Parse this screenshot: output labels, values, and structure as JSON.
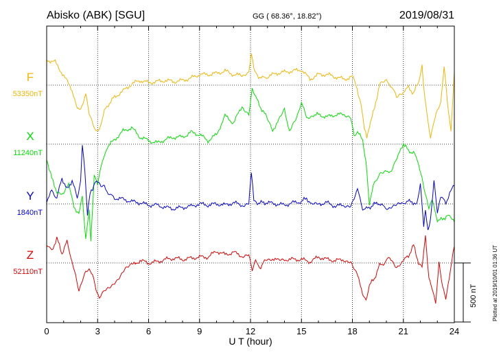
{
  "chart_data": {
    "type": "line",
    "title": "Abisko (ABK)  [SGU]",
    "coords": "GG ( 68.36°,  18.82°)",
    "date": "2019/08/31",
    "xlabel": "U T (hour)",
    "xlim": [
      0,
      24
    ],
    "xticks": [
      "0",
      "3",
      "6",
      "9",
      "12",
      "15",
      "18",
      "21",
      "24"
    ],
    "scale_bar": "500 nT",
    "plotted_note": "Plotted at 2019/10/01 01:36 UT",
    "grid": true,
    "series": [
      {
        "name": "F",
        "baseline_label": "53350nT",
        "baseline_nT": 53350,
        "color": "#f4b400",
        "x": [
          0,
          0.5,
          1,
          1.5,
          1.8,
          2,
          2.3,
          2.5,
          2.7,
          2.9,
          3.1,
          3.4,
          3.7,
          4,
          4.5,
          5,
          5.5,
          6,
          6.5,
          7,
          7.5,
          8,
          8.5,
          9,
          9.5,
          10,
          10.5,
          11,
          11.5,
          11.9,
          12.05,
          12.2,
          12.4,
          12.7,
          13,
          13.5,
          14,
          14.5,
          15,
          15.5,
          16,
          16.5,
          17,
          17.5,
          18,
          18.2,
          18.5,
          18.7,
          18.85,
          19,
          19.3,
          19.6,
          20,
          20.3,
          20.6,
          21,
          21.3,
          21.6,
          21.9,
          22.1,
          22.2,
          22.4,
          22.6,
          22.8,
          23,
          23.2,
          23.4,
          23.6,
          23.8,
          24
        ],
        "y": [
          53565,
          53545,
          53430,
          53310,
          53140,
          53150,
          53270,
          53100,
          53020,
          52950,
          52980,
          53130,
          53200,
          53250,
          53300,
          53360,
          53390,
          53370,
          53380,
          53390,
          53380,
          53390,
          53410,
          53440,
          53440,
          53450,
          53470,
          53440,
          53430,
          53470,
          53610,
          53490,
          53430,
          53410,
          53420,
          53450,
          53460,
          53470,
          53480,
          53400,
          53440,
          53440,
          53420,
          53400,
          53420,
          53350,
          53200,
          52980,
          52900,
          53010,
          53150,
          53360,
          53380,
          53340,
          53250,
          53300,
          53330,
          53280,
          53380,
          53530,
          53320,
          53080,
          52900,
          53050,
          53150,
          53210,
          53520,
          53200,
          52950,
          53460
        ]
      },
      {
        "name": "X",
        "baseline_label": "11240nT",
        "baseline_nT": 11240,
        "color": "#00e000",
        "x": [
          0,
          0.3,
          0.6,
          1,
          1.3,
          1.6,
          1.9,
          2.1,
          2.3,
          2.5,
          2.6,
          2.8,
          3,
          3.2,
          3.5,
          4,
          4.5,
          5,
          5.5,
          6,
          6.5,
          7,
          7.5,
          8,
          8.5,
          9,
          9.5,
          10,
          10.5,
          11,
          11.5,
          11.9,
          12.1,
          12.3,
          12.6,
          12.9,
          13.3,
          13.6,
          14,
          14.3,
          14.7,
          15,
          15.3,
          15.7,
          16,
          16.5,
          17,
          17.5,
          17.9,
          18.1,
          18.3,
          18.6,
          18.8,
          19,
          19.3,
          19.6,
          20,
          20.3,
          20.7,
          21,
          21.3,
          21.6,
          21.9,
          22.1,
          22.3,
          22.5,
          22.7,
          23,
          23.3,
          23.6,
          24
        ],
        "y": [
          11120,
          10950,
          10840,
          10810,
          10920,
          10700,
          10660,
          10790,
          10420,
          10680,
          10420,
          10980,
          10900,
          11040,
          11200,
          11280,
          11350,
          11380,
          11300,
          11270,
          11250,
          11280,
          11300,
          11300,
          11340,
          11320,
          11270,
          11320,
          11480,
          11420,
          11560,
          11500,
          11710,
          11640,
          11550,
          11480,
          11360,
          11420,
          11530,
          11350,
          11450,
          11600,
          11460,
          11490,
          11490,
          11470,
          11490,
          11490,
          11480,
          11320,
          11340,
          11280,
          11100,
          10740,
          10920,
          10980,
          11000,
          11020,
          11140,
          11250,
          11180,
          11170,
          11080,
          10960,
          10820,
          10700,
          10760,
          10600,
          10600,
          10640,
          10580
        ]
      },
      {
        "name": "Y",
        "baseline_label": "1840nT",
        "baseline_nT": 1840,
        "color": "#0000e0",
        "x": [
          0,
          0.3,
          0.6,
          0.9,
          1.2,
          1.5,
          1.8,
          2,
          2.1,
          2.25,
          2.4,
          2.55,
          2.7,
          2.85,
          3,
          3.2,
          3.4,
          3.7,
          4,
          4.5,
          5,
          5.5,
          6,
          6.5,
          7,
          7.5,
          8,
          8.5,
          9,
          9.5,
          10,
          10.5,
          11,
          11.5,
          11.9,
          12.05,
          12.2,
          12.4,
          12.7,
          13,
          13.5,
          14,
          14.5,
          15,
          15.3,
          15.6,
          16,
          16.5,
          17,
          17.5,
          17.9,
          18.1,
          18.3,
          18.6,
          18.9,
          19.2,
          19.5,
          19.8,
          20.1,
          20.5,
          20.9,
          21.2,
          21.5,
          21.8,
          22,
          22.2,
          22.3,
          22.45,
          22.6,
          22.8,
          23,
          23.2,
          23.5,
          23.8,
          24
        ],
        "y": [
          1870,
          1950,
          1890,
          2060,
          1960,
          2040,
          1890,
          2040,
          2330,
          2120,
          1760,
          1920,
          1960,
          2040,
          2020,
          1980,
          1980,
          1920,
          1890,
          1880,
          1860,
          1850,
          1830,
          1830,
          1810,
          1800,
          1810,
          1820,
          1840,
          1830,
          1840,
          1830,
          1850,
          1830,
          1850,
          2100,
          1880,
          1850,
          1850,
          1850,
          1840,
          1830,
          1850,
          1860,
          1890,
          1830,
          1840,
          1850,
          1820,
          1830,
          1830,
          1890,
          1960,
          1800,
          1800,
          1830,
          1850,
          1820,
          1800,
          1820,
          1840,
          1860,
          1860,
          1830,
          2000,
          1650,
          1780,
          1600,
          1720,
          2050,
          1780,
          1900,
          1850,
          1950,
          1990
        ]
      },
      {
        "name": "Z",
        "baseline_label": "52110nT",
        "baseline_nT": 52110,
        "color": "#e00000",
        "x": [
          0,
          0.3,
          0.6,
          0.9,
          1.2,
          1.5,
          1.7,
          1.9,
          2.1,
          2.3,
          2.5,
          2.7,
          2.9,
          3.1,
          3.4,
          3.8,
          4.2,
          4.6,
          5,
          5.5,
          6,
          6.5,
          7,
          7.5,
          8,
          8.5,
          9,
          9.5,
          10,
          10.5,
          11,
          11.5,
          11.9,
          12.1,
          12.3,
          12.6,
          12.9,
          13.3,
          13.6,
          14,
          14.5,
          15,
          15.5,
          16,
          16.5,
          17,
          17.5,
          17.9,
          18.1,
          18.3,
          18.6,
          18.8,
          19,
          19.3,
          19.6,
          19.9,
          20.2,
          20.6,
          21,
          21.3,
          21.6,
          21.9,
          22.1,
          22.3,
          22.5,
          22.7,
          22.9,
          23.1,
          23.3,
          23.5,
          23.7,
          24
        ],
        "y": [
          52270,
          52210,
          52320,
          52190,
          52290,
          52120,
          52000,
          51860,
          51950,
          52030,
          52050,
          52020,
          51900,
          51820,
          51870,
          51920,
          51980,
          52060,
          52090,
          52130,
          52110,
          52120,
          52140,
          52150,
          52140,
          52150,
          52160,
          52160,
          52210,
          52180,
          52200,
          52170,
          52180,
          52040,
          52120,
          52070,
          52140,
          52150,
          52130,
          52140,
          52140,
          52140,
          52120,
          52160,
          52140,
          52130,
          52140,
          52120,
          52060,
          52000,
          51860,
          51800,
          51920,
          51980,
          52090,
          52110,
          52160,
          52080,
          52130,
          52170,
          52260,
          52110,
          52080,
          52330,
          51970,
          51880,
          51760,
          52110,
          51920,
          51820,
          51990,
          52250
        ]
      }
    ]
  }
}
